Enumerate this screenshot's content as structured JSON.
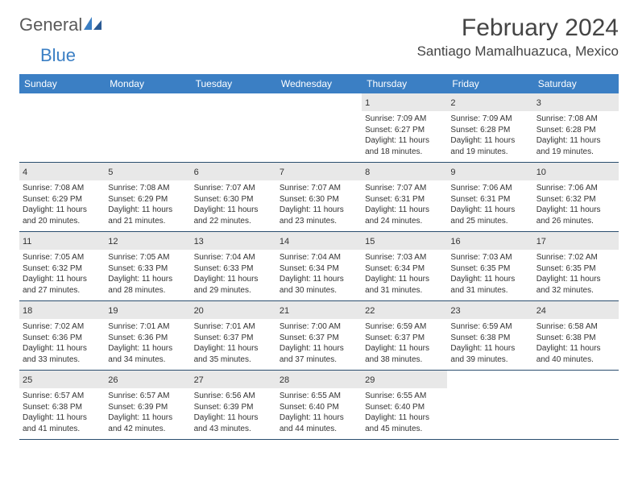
{
  "logo": {
    "word1": "General",
    "word2": "Blue"
  },
  "title": "February 2024",
  "location": "Santiago Mamalhuazuca, Mexico",
  "colors": {
    "header_bg": "#3b7fc4",
    "daynum_bg": "#e8e8e8",
    "rule": "#2a4d6e"
  },
  "day_names": [
    "Sunday",
    "Monday",
    "Tuesday",
    "Wednesday",
    "Thursday",
    "Friday",
    "Saturday"
  ],
  "weeks": [
    [
      null,
      null,
      null,
      null,
      {
        "d": "1",
        "sr": "Sunrise: 7:09 AM",
        "ss": "Sunset: 6:27 PM",
        "dl1": "Daylight: 11 hours",
        "dl2": "and 18 minutes."
      },
      {
        "d": "2",
        "sr": "Sunrise: 7:09 AM",
        "ss": "Sunset: 6:28 PM",
        "dl1": "Daylight: 11 hours",
        "dl2": "and 19 minutes."
      },
      {
        "d": "3",
        "sr": "Sunrise: 7:08 AM",
        "ss": "Sunset: 6:28 PM",
        "dl1": "Daylight: 11 hours",
        "dl2": "and 19 minutes."
      }
    ],
    [
      {
        "d": "4",
        "sr": "Sunrise: 7:08 AM",
        "ss": "Sunset: 6:29 PM",
        "dl1": "Daylight: 11 hours",
        "dl2": "and 20 minutes."
      },
      {
        "d": "5",
        "sr": "Sunrise: 7:08 AM",
        "ss": "Sunset: 6:29 PM",
        "dl1": "Daylight: 11 hours",
        "dl2": "and 21 minutes."
      },
      {
        "d": "6",
        "sr": "Sunrise: 7:07 AM",
        "ss": "Sunset: 6:30 PM",
        "dl1": "Daylight: 11 hours",
        "dl2": "and 22 minutes."
      },
      {
        "d": "7",
        "sr": "Sunrise: 7:07 AM",
        "ss": "Sunset: 6:30 PM",
        "dl1": "Daylight: 11 hours",
        "dl2": "and 23 minutes."
      },
      {
        "d": "8",
        "sr": "Sunrise: 7:07 AM",
        "ss": "Sunset: 6:31 PM",
        "dl1": "Daylight: 11 hours",
        "dl2": "and 24 minutes."
      },
      {
        "d": "9",
        "sr": "Sunrise: 7:06 AM",
        "ss": "Sunset: 6:31 PM",
        "dl1": "Daylight: 11 hours",
        "dl2": "and 25 minutes."
      },
      {
        "d": "10",
        "sr": "Sunrise: 7:06 AM",
        "ss": "Sunset: 6:32 PM",
        "dl1": "Daylight: 11 hours",
        "dl2": "and 26 minutes."
      }
    ],
    [
      {
        "d": "11",
        "sr": "Sunrise: 7:05 AM",
        "ss": "Sunset: 6:32 PM",
        "dl1": "Daylight: 11 hours",
        "dl2": "and 27 minutes."
      },
      {
        "d": "12",
        "sr": "Sunrise: 7:05 AM",
        "ss": "Sunset: 6:33 PM",
        "dl1": "Daylight: 11 hours",
        "dl2": "and 28 minutes."
      },
      {
        "d": "13",
        "sr": "Sunrise: 7:04 AM",
        "ss": "Sunset: 6:33 PM",
        "dl1": "Daylight: 11 hours",
        "dl2": "and 29 minutes."
      },
      {
        "d": "14",
        "sr": "Sunrise: 7:04 AM",
        "ss": "Sunset: 6:34 PM",
        "dl1": "Daylight: 11 hours",
        "dl2": "and 30 minutes."
      },
      {
        "d": "15",
        "sr": "Sunrise: 7:03 AM",
        "ss": "Sunset: 6:34 PM",
        "dl1": "Daylight: 11 hours",
        "dl2": "and 31 minutes."
      },
      {
        "d": "16",
        "sr": "Sunrise: 7:03 AM",
        "ss": "Sunset: 6:35 PM",
        "dl1": "Daylight: 11 hours",
        "dl2": "and 31 minutes."
      },
      {
        "d": "17",
        "sr": "Sunrise: 7:02 AM",
        "ss": "Sunset: 6:35 PM",
        "dl1": "Daylight: 11 hours",
        "dl2": "and 32 minutes."
      }
    ],
    [
      {
        "d": "18",
        "sr": "Sunrise: 7:02 AM",
        "ss": "Sunset: 6:36 PM",
        "dl1": "Daylight: 11 hours",
        "dl2": "and 33 minutes."
      },
      {
        "d": "19",
        "sr": "Sunrise: 7:01 AM",
        "ss": "Sunset: 6:36 PM",
        "dl1": "Daylight: 11 hours",
        "dl2": "and 34 minutes."
      },
      {
        "d": "20",
        "sr": "Sunrise: 7:01 AM",
        "ss": "Sunset: 6:37 PM",
        "dl1": "Daylight: 11 hours",
        "dl2": "and 35 minutes."
      },
      {
        "d": "21",
        "sr": "Sunrise: 7:00 AM",
        "ss": "Sunset: 6:37 PM",
        "dl1": "Daylight: 11 hours",
        "dl2": "and 37 minutes."
      },
      {
        "d": "22",
        "sr": "Sunrise: 6:59 AM",
        "ss": "Sunset: 6:37 PM",
        "dl1": "Daylight: 11 hours",
        "dl2": "and 38 minutes."
      },
      {
        "d": "23",
        "sr": "Sunrise: 6:59 AM",
        "ss": "Sunset: 6:38 PM",
        "dl1": "Daylight: 11 hours",
        "dl2": "and 39 minutes."
      },
      {
        "d": "24",
        "sr": "Sunrise: 6:58 AM",
        "ss": "Sunset: 6:38 PM",
        "dl1": "Daylight: 11 hours",
        "dl2": "and 40 minutes."
      }
    ],
    [
      {
        "d": "25",
        "sr": "Sunrise: 6:57 AM",
        "ss": "Sunset: 6:38 PM",
        "dl1": "Daylight: 11 hours",
        "dl2": "and 41 minutes."
      },
      {
        "d": "26",
        "sr": "Sunrise: 6:57 AM",
        "ss": "Sunset: 6:39 PM",
        "dl1": "Daylight: 11 hours",
        "dl2": "and 42 minutes."
      },
      {
        "d": "27",
        "sr": "Sunrise: 6:56 AM",
        "ss": "Sunset: 6:39 PM",
        "dl1": "Daylight: 11 hours",
        "dl2": "and 43 minutes."
      },
      {
        "d": "28",
        "sr": "Sunrise: 6:55 AM",
        "ss": "Sunset: 6:40 PM",
        "dl1": "Daylight: 11 hours",
        "dl2": "and 44 minutes."
      },
      {
        "d": "29",
        "sr": "Sunrise: 6:55 AM",
        "ss": "Sunset: 6:40 PM",
        "dl1": "Daylight: 11 hours",
        "dl2": "and 45 minutes."
      },
      null,
      null
    ]
  ]
}
